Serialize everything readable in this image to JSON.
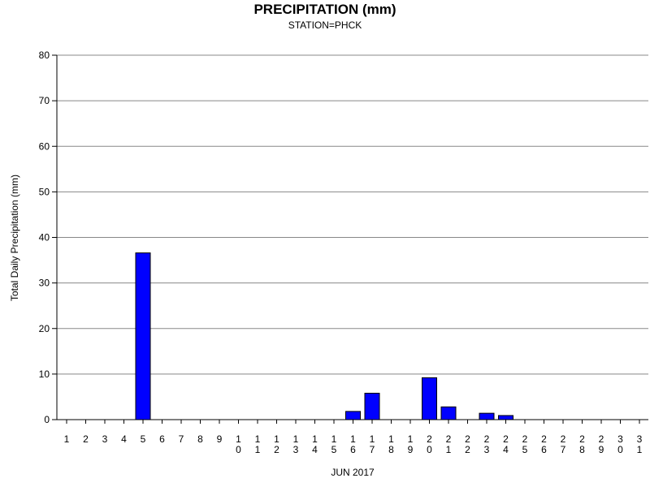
{
  "chart_data": {
    "type": "bar",
    "title": "PRECIPITATION (mm)",
    "subtitle": "STATION=PHCK",
    "xlabel": "JUN 2017",
    "ylabel": "Total Daily Precipitation (mm)",
    "ylim": [
      0,
      80
    ],
    "yticks": [
      0,
      10,
      20,
      30,
      40,
      50,
      60,
      70,
      80
    ],
    "grid": true,
    "bar_color": "#0000ff",
    "categories": [
      "1",
      "2",
      "3",
      "4",
      "5",
      "6",
      "7",
      "8",
      "9",
      "10",
      "11",
      "12",
      "13",
      "14",
      "15",
      "16",
      "17",
      "18",
      "19",
      "20",
      "21",
      "22",
      "23",
      "24",
      "25",
      "26",
      "27",
      "28",
      "29",
      "30",
      "31"
    ],
    "values": [
      0,
      0,
      0,
      0,
      36.6,
      0,
      0,
      0,
      0,
      0,
      0,
      0,
      0,
      0,
      0,
      1.8,
      5.8,
      0,
      0,
      9.2,
      2.8,
      0,
      1.4,
      0.9,
      0,
      0,
      0,
      0,
      0,
      0,
      0
    ]
  }
}
